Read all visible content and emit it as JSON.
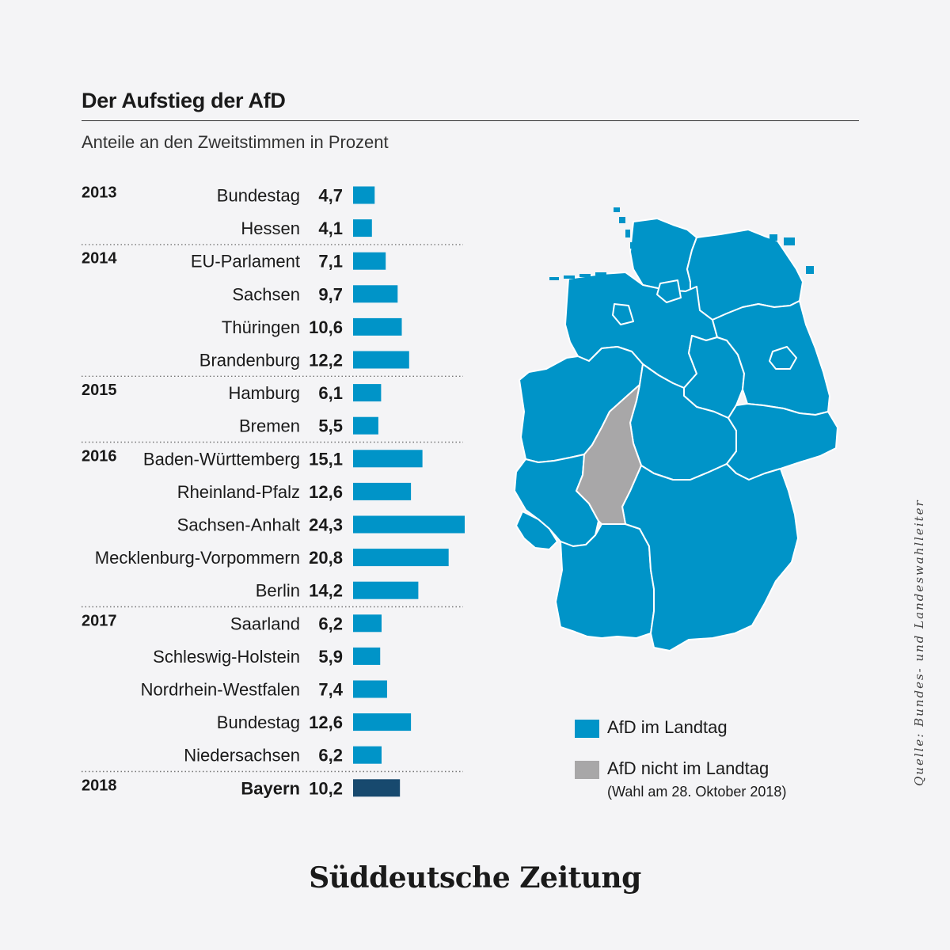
{
  "header": {
    "title": "Der Aufstieg der AfD",
    "subtitle": "Anteile an den Zweitstimmen in Prozent"
  },
  "chart_data": {
    "type": "bar",
    "title": "Der Aufstieg der AfD",
    "subtitle": "Anteile an den Zweitstimmen in Prozent",
    "orientation": "horizontal",
    "xlim": [
      0,
      24.3
    ],
    "bar_color": "#0094c8",
    "highlight_color": "#17496e",
    "groups": [
      {
        "year": "2013",
        "items": [
          {
            "label": "Bundestag",
            "value": 4.7,
            "display": "4,7"
          },
          {
            "label": "Hessen",
            "value": 4.1,
            "display": "4,1"
          }
        ]
      },
      {
        "year": "2014",
        "items": [
          {
            "label": "EU-Parlament",
            "value": 7.1,
            "display": "7,1"
          },
          {
            "label": "Sachsen",
            "value": 9.7,
            "display": "9,7"
          },
          {
            "label": "Thüringen",
            "value": 10.6,
            "display": "10,6"
          },
          {
            "label": "Brandenburg",
            "value": 12.2,
            "display": "12,2"
          }
        ]
      },
      {
        "year": "2015",
        "items": [
          {
            "label": "Hamburg",
            "value": 6.1,
            "display": "6,1"
          },
          {
            "label": "Bremen",
            "value": 5.5,
            "display": "5,5"
          }
        ]
      },
      {
        "year": "2016",
        "items": [
          {
            "label": "Baden-Württemberg",
            "value": 15.1,
            "display": "15,1"
          },
          {
            "label": "Rheinland-Pfalz",
            "value": 12.6,
            "display": "12,6"
          },
          {
            "label": "Sachsen-Anhalt",
            "value": 24.3,
            "display": "24,3"
          },
          {
            "label": "Mecklenburg-Vorpommern",
            "value": 20.8,
            "display": "20,8"
          },
          {
            "label": "Berlin",
            "value": 14.2,
            "display": "14,2"
          }
        ]
      },
      {
        "year": "2017",
        "items": [
          {
            "label": "Saarland",
            "value": 6.2,
            "display": "6,2"
          },
          {
            "label": "Schleswig-Holstein",
            "value": 5.9,
            "display": "5,9"
          },
          {
            "label": "Nordrhein-Westfalen",
            "value": 7.4,
            "display": "7,4"
          },
          {
            "label": "Bundestag",
            "value": 12.6,
            "display": "12,6"
          },
          {
            "label": "Niedersachsen",
            "value": 6.2,
            "display": "6,2"
          }
        ]
      },
      {
        "year": "2018",
        "items": [
          {
            "label": "Bayern",
            "value": 10.2,
            "display": "10,2",
            "highlight": true
          }
        ]
      }
    ]
  },
  "map": {
    "in_landtag_color": "#0094c8",
    "not_in_landtag_color": "#a8a7a8",
    "not_in_landtag": [
      "Hessen"
    ]
  },
  "legend": {
    "in_landtag": "AfD im Landtag",
    "not_in_landtag": "AfD nicht im Landtag",
    "note": "(Wahl am 28. Oktober 2018)"
  },
  "source": "Quelle: Bundes- und Landeswahlleiter",
  "logo": "Süddeutsche Zeitung"
}
